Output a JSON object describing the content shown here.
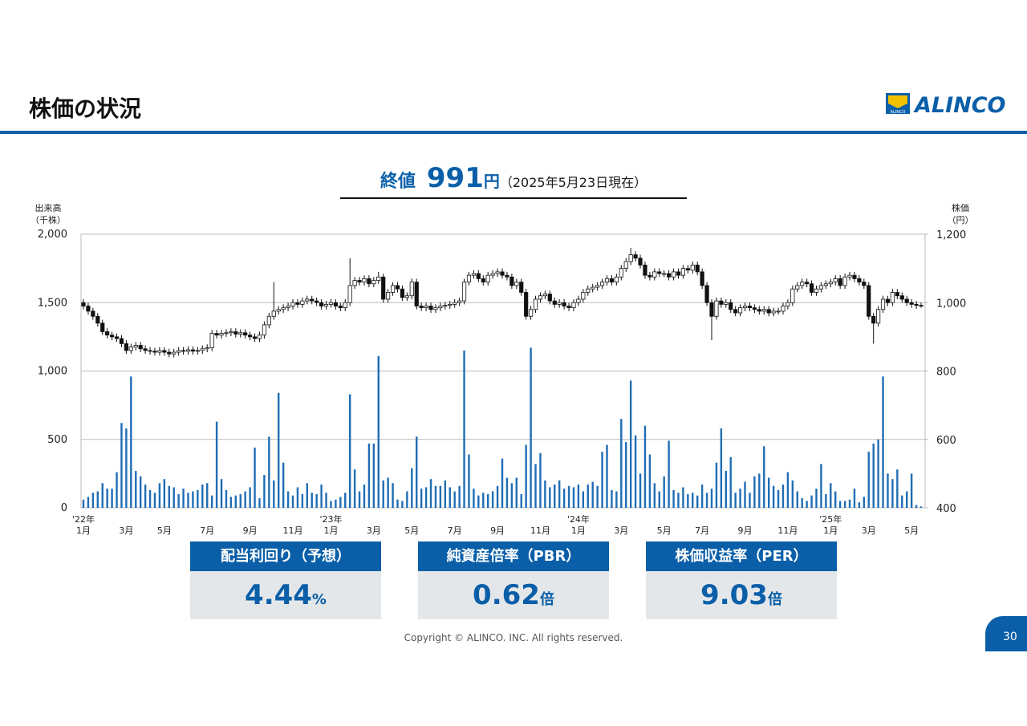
{
  "header": {
    "title": "株価の状況",
    "logo": "ALINCO",
    "logo_small": "ALINCO"
  },
  "headline": {
    "label": "終値",
    "price": "991",
    "unit": "円",
    "note": "（2025年5月23日現在）"
  },
  "chart_data": {
    "type": "candlestick",
    "y_label": [
      "出来高",
      "（千株）"
    ],
    "y2_label": [
      "株価",
      "（円）"
    ],
    "ylim": [
      0,
      2000
    ],
    "yticks": [
      0,
      500,
      {
        "value": 1000,
        "label": "1,000"
      },
      {
        "value": 1500,
        "label": "1,500"
      },
      {
        "value": 2000,
        "label": "2,000"
      }
    ],
    "y2lim": [
      400,
      1200
    ],
    "y2ticks": [
      400,
      600,
      800,
      {
        "value": 1000,
        "label": "1,000"
      },
      {
        "value": 1200,
        "label": "1,200"
      }
    ],
    "grid": true,
    "xlim": [
      0,
      176
    ],
    "xticks": [
      {
        "value": 0,
        "label": "1月"
      },
      {
        "value": 9,
        "label": "3月"
      },
      {
        "value": 17,
        "label": "5月"
      },
      {
        "value": 26,
        "label": "7月"
      },
      {
        "value": 35,
        "label": "9月"
      },
      {
        "value": 44,
        "label": "11月"
      },
      {
        "value": 52,
        "label": "1月"
      },
      {
        "value": 61,
        "label": "3月"
      },
      {
        "value": 69,
        "label": "5月"
      },
      {
        "value": 78,
        "label": "7月"
      },
      {
        "value": 87,
        "label": "9月"
      },
      {
        "value": 96,
        "label": "11月"
      },
      {
        "value": 104,
        "label": "1月"
      },
      {
        "value": 113,
        "label": "3月"
      },
      {
        "value": 122,
        "label": "5月"
      },
      {
        "value": 130,
        "label": "7月"
      },
      {
        "value": 139,
        "label": "9月"
      },
      {
        "value": 148,
        "label": "11月"
      },
      {
        "value": 157,
        "label": "1月"
      },
      {
        "value": 165,
        "label": "3月"
      },
      {
        "value": 174,
        "label": "5月"
      }
    ],
    "year_labels": [
      {
        "value": 0,
        "label": "'22年"
      },
      {
        "value": 52,
        "label": "'23年"
      },
      {
        "value": 104,
        "label": "'24年"
      },
      {
        "value": 157,
        "label": "'25年"
      }
    ],
    "volume": {
      "color": "#1f6db5",
      "values": [
        60,
        80,
        110,
        120,
        180,
        140,
        140,
        260,
        620,
        580,
        960,
        270,
        230,
        170,
        130,
        110,
        180,
        210,
        160,
        150,
        100,
        140,
        110,
        120,
        130,
        170,
        180,
        90,
        630,
        210,
        130,
        80,
        90,
        100,
        120,
        150,
        440,
        70,
        240,
        520,
        200,
        840,
        330,
        120,
        90,
        150,
        100,
        180,
        110,
        100,
        170,
        110,
        50,
        60,
        80,
        110,
        830,
        280,
        120,
        170,
        470,
        470,
        1110,
        200,
        220,
        180,
        60,
        50,
        120,
        290,
        520,
        140,
        150,
        210,
        160,
        160,
        200,
        150,
        120,
        160,
        1150,
        390,
        140,
        90,
        110,
        100,
        120,
        160,
        360,
        220,
        180,
        220,
        100,
        460,
        1170,
        320,
        400,
        200,
        150,
        170,
        200,
        140,
        160,
        150,
        170,
        120,
        170,
        190,
        160,
        410,
        460,
        130,
        120,
        650,
        480,
        930,
        530,
        250,
        600,
        390,
        180,
        120,
        230,
        490,
        130,
        110,
        150,
        100,
        110,
        90,
        170,
        110,
        140,
        330,
        580,
        270,
        370,
        110,
        140,
        190,
        110,
        230,
        250,
        450,
        220,
        160,
        130,
        170,
        260,
        200,
        120,
        70,
        50,
        90,
        140,
        320,
        100,
        180,
        120,
        50,
        50,
        60,
        140,
        40,
        80,
        410,
        470,
        500,
        960,
        250,
        210,
        280,
        90,
        120,
        250,
        20,
        10
      ]
    },
    "price": {
      "up_color": "#ffffff",
      "down_color": "#111111",
      "axis": "y2",
      "open": [
        1000,
        990,
        975,
        960,
        940,
        915,
        905,
        900,
        895,
        880,
        860,
        870,
        875,
        865,
        860,
        858,
        855,
        860,
        855,
        850,
        855,
        860,
        858,
        862,
        858,
        860,
        865,
        868,
        910,
        905,
        910,
        912,
        915,
        908,
        912,
        905,
        900,
        895,
        905,
        935,
        960,
        975,
        980,
        985,
        990,
        1000,
        995,
        1005,
        1010,
        1005,
        1000,
        990,
        995,
        1000,
        990,
        985,
        1000,
        1050,
        1065,
        1060,
        1070,
        1055,
        1065,
        1075,
        1010,
        1030,
        1050,
        1040,
        1015,
        1020,
        1060,
        990,
        985,
        990,
        980,
        985,
        990,
        992,
        995,
        1000,
        1005,
        1060,
        1080,
        1085,
        1070,
        1060,
        1080,
        1085,
        1090,
        1080,
        1075,
        1050,
        1060,
        1030,
        960,
        980,
        1010,
        1020,
        1025,
        1005,
        995,
        1000,
        990,
        985,
        1000,
        1010,
        1030,
        1040,
        1045,
        1050,
        1060,
        1070,
        1060,
        1075,
        1100,
        1120,
        1140,
        1130,
        1110,
        1080,
        1075,
        1090,
        1085,
        1085,
        1075,
        1090,
        1080,
        1100,
        1095,
        1110,
        1090,
        1050,
        1000,
        960,
        1005,
        995,
        1000,
        980,
        970,
        985,
        990,
        985,
        980,
        975,
        980,
        970,
        975,
        975,
        990,
        1000,
        1040,
        1050,
        1060,
        1055,
        1030,
        1040,
        1050,
        1055,
        1060,
        1070,
        1050,
        1075,
        1080,
        1070,
        1060,
        1050,
        960,
        940,
        980,
        1010,
        1000,
        1030,
        1020,
        1010,
        1000,
        995,
        992
      ],
      "high": [
        1010,
        1000,
        985,
        970,
        950,
        925,
        915,
        910,
        905,
        890,
        880,
        885,
        885,
        875,
        870,
        868,
        870,
        870,
        865,
        865,
        870,
        870,
        872,
        872,
        870,
        875,
        878,
        920,
        920,
        920,
        922,
        925,
        925,
        922,
        922,
        915,
        910,
        915,
        945,
        970,
        1060,
        990,
        995,
        1000,
        1010,
        1010,
        1015,
        1020,
        1020,
        1015,
        1010,
        1005,
        1010,
        1010,
        1000,
        1010,
        1130,
        1075,
        1075,
        1080,
        1080,
        1075,
        1090,
        1085,
        1040,
        1060,
        1060,
        1050,
        1030,
        1070,
        1070,
        1000,
        1000,
        1000,
        995,
        1000,
        1002,
        1005,
        1010,
        1015,
        1070,
        1090,
        1095,
        1095,
        1080,
        1090,
        1095,
        1100,
        1100,
        1090,
        1085,
        1070,
        1070,
        1040,
        990,
        1020,
        1030,
        1035,
        1035,
        1015,
        1010,
        1010,
        1000,
        1010,
        1020,
        1040,
        1050,
        1055,
        1060,
        1070,
        1080,
        1080,
        1085,
        1110,
        1130,
        1160,
        1150,
        1140,
        1120,
        1090,
        1100,
        1100,
        1095,
        1095,
        1100,
        1100,
        1110,
        1110,
        1120,
        1120,
        1100,
        1060,
        1010,
        1015,
        1015,
        1010,
        1010,
        990,
        995,
        1000,
        1000,
        995,
        990,
        990,
        990,
        985,
        985,
        1000,
        1010,
        1050,
        1060,
        1070,
        1070,
        1065,
        1050,
        1060,
        1065,
        1070,
        1080,
        1080,
        1085,
        1090,
        1090,
        1080,
        1070,
        1060,
        970,
        990,
        1020,
        1020,
        1040,
        1040,
        1030,
        1020,
        1010,
        1005,
        1000
      ],
      "low": [
        980,
        965,
        950,
        930,
        905,
        895,
        890,
        885,
        870,
        850,
        850,
        860,
        855,
        850,
        848,
        845,
        845,
        845,
        840,
        840,
        845,
        848,
        848,
        848,
        848,
        850,
        855,
        858,
        895,
        895,
        900,
        902,
        898,
        898,
        895,
        890,
        885,
        885,
        895,
        925,
        950,
        965,
        970,
        975,
        980,
        985,
        985,
        995,
        995,
        990,
        980,
        980,
        985,
        980,
        975,
        975,
        990,
        1040,
        1050,
        1050,
        1045,
        1045,
        1055,
        1000,
        1000,
        1020,
        1030,
        1005,
        1005,
        1010,
        980,
        975,
        975,
        970,
        970,
        975,
        980,
        982,
        985,
        990,
        995,
        1050,
        1070,
        1060,
        1050,
        1050,
        1070,
        1075,
        1070,
        1065,
        1040,
        1040,
        1020,
        950,
        950,
        970,
        1000,
        1010,
        995,
        985,
        985,
        980,
        975,
        975,
        990,
        1000,
        1020,
        1030,
        1035,
        1040,
        1050,
        1050,
        1050,
        1065,
        1090,
        1110,
        1120,
        1100,
        1070,
        1065,
        1065,
        1075,
        1075,
        1065,
        1065,
        1070,
        1070,
        1085,
        1085,
        1080,
        1040,
        990,
        890,
        950,
        985,
        985,
        970,
        960,
        960,
        975,
        975,
        970,
        965,
        965,
        960,
        960,
        965,
        965,
        980,
        990,
        1030,
        1040,
        1045,
        1020,
        1020,
        1030,
        1040,
        1045,
        1050,
        1040,
        1040,
        1065,
        1060,
        1050,
        1040,
        950,
        880,
        930,
        970,
        990,
        990,
        1010,
        1000,
        990,
        985,
        982,
        985
      ],
      "close": [
        990,
        975,
        960,
        940,
        915,
        905,
        900,
        895,
        880,
        860,
        870,
        875,
        865,
        860,
        858,
        855,
        860,
        855,
        850,
        855,
        860,
        858,
        862,
        858,
        860,
        865,
        868,
        910,
        905,
        910,
        912,
        915,
        908,
        912,
        905,
        900,
        895,
        905,
        935,
        960,
        975,
        980,
        985,
        990,
        1000,
        995,
        1005,
        1010,
        1005,
        1000,
        990,
        995,
        1000,
        990,
        985,
        1000,
        1050,
        1065,
        1060,
        1070,
        1055,
        1065,
        1075,
        1010,
        1030,
        1050,
        1040,
        1015,
        1020,
        1060,
        990,
        985,
        990,
        980,
        985,
        990,
        992,
        995,
        1000,
        1005,
        1060,
        1080,
        1085,
        1070,
        1060,
        1080,
        1085,
        1090,
        1080,
        1075,
        1050,
        1060,
        1030,
        960,
        980,
        1010,
        1020,
        1025,
        1005,
        995,
        1000,
        990,
        985,
        1000,
        1010,
        1030,
        1040,
        1045,
        1050,
        1060,
        1070,
        1060,
        1075,
        1100,
        1120,
        1140,
        1130,
        1110,
        1080,
        1075,
        1090,
        1085,
        1085,
        1075,
        1090,
        1080,
        1100,
        1095,
        1110,
        1090,
        1050,
        1000,
        960,
        1005,
        995,
        1000,
        980,
        970,
        985,
        990,
        985,
        980,
        975,
        980,
        970,
        975,
        975,
        990,
        1000,
        1040,
        1050,
        1060,
        1055,
        1030,
        1040,
        1050,
        1055,
        1060,
        1070,
        1050,
        1075,
        1080,
        1070,
        1060,
        1050,
        960,
        940,
        980,
        1010,
        1000,
        1030,
        1020,
        1010,
        1000,
        995,
        992,
        991
      ]
    }
  },
  "metrics": [
    {
      "label": "配当利回り（予想）",
      "value": "4.44",
      "unit": "%"
    },
    {
      "label": "純資産倍率（PBR）",
      "value": "0.62",
      "unit": "倍"
    },
    {
      "label": "株価収益率（PER）",
      "value": "9.03",
      "unit": "倍"
    }
  ],
  "footer": {
    "copyright": "Copyright © ALINCO. INC. All rights reserved.",
    "page": "30"
  }
}
